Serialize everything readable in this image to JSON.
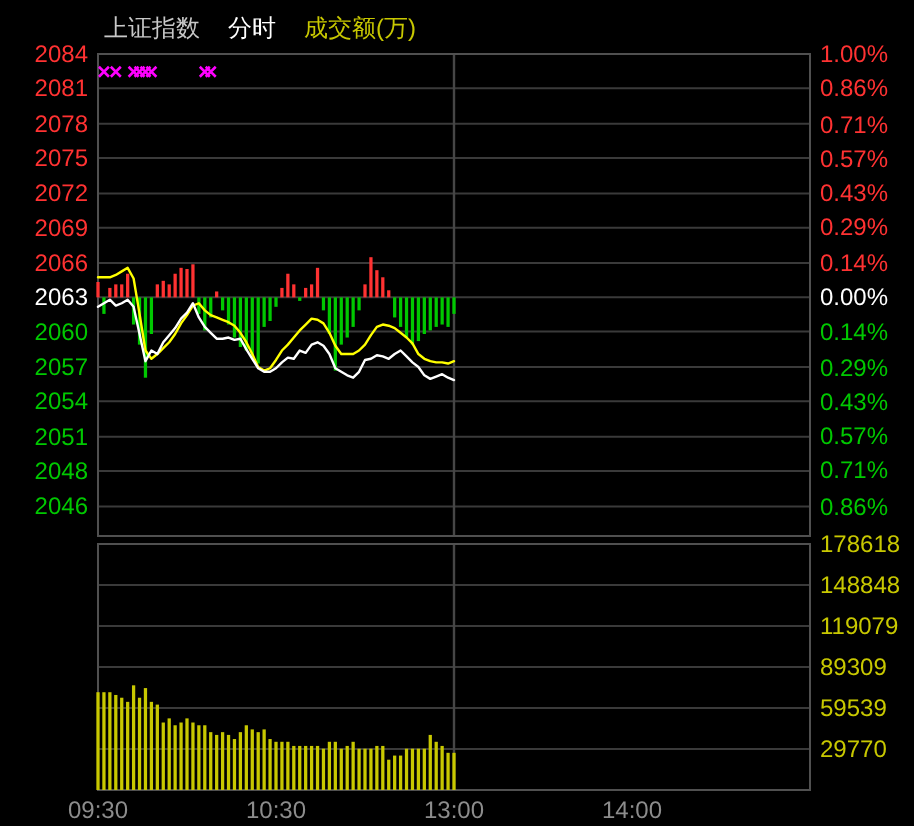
{
  "chart_data": [
    {
      "type": "line",
      "title": "上证指数",
      "subtitle": "分时",
      "annotations": [
        "成交额(万)"
      ],
      "categories": [
        "09:30",
        null,
        null,
        null,
        null,
        null,
        null,
        null,
        null,
        null,
        null,
        null,
        null,
        null,
        null,
        null,
        null,
        null,
        null,
        null,
        null,
        null,
        null,
        null,
        null,
        null,
        null,
        null,
        null,
        null,
        "10:30",
        null,
        null,
        null,
        null,
        null,
        null,
        null,
        null,
        null,
        null,
        null,
        null,
        null,
        null,
        null,
        null,
        null,
        null,
        null,
        null,
        null,
        null,
        null,
        null,
        null,
        null,
        null,
        null,
        null,
        "13:00",
        null,
        null,
        null,
        null,
        null,
        null,
        null,
        null,
        null,
        null,
        null,
        null,
        null,
        null,
        null,
        null,
        null,
        null,
        null,
        null,
        null,
        null,
        null,
        null,
        null,
        null,
        null,
        null,
        null,
        "14:00",
        null,
        null,
        null,
        null,
        null,
        null,
        null,
        null,
        null,
        null,
        null,
        null,
        null,
        null,
        null,
        null,
        null,
        null,
        null,
        null,
        null,
        null,
        null,
        null,
        null,
        null,
        null,
        null,
        null,
        null
      ],
      "ylim": [
        2043.0,
        2083.8
      ],
      "yticks": [
        {
          "value": 2083.8,
          "label": "2084"
        },
        {
          "value": 2080.9,
          "label": "2081"
        },
        {
          "value": 2077.9,
          "label": "2078"
        },
        {
          "value": 2075.0,
          "label": "2075"
        },
        {
          "value": 2072.0,
          "label": "2072"
        },
        {
          "value": 2069.1,
          "label": "2069"
        },
        {
          "value": 2066.1,
          "label": "2066"
        },
        {
          "value": 2063.2,
          "label": "2063"
        },
        {
          "value": 2060.3,
          "label": "2060"
        },
        {
          "value": 2057.3,
          "label": "2057"
        },
        {
          "value": 2054.4,
          "label": "2054"
        },
        {
          "value": 2051.4,
          "label": "2051"
        },
        {
          "value": 2048.5,
          "label": "2048"
        },
        {
          "value": 2045.5,
          "label": "2046"
        }
      ],
      "y2lim": [
        -0.98,
        1.0
      ],
      "y2ticks": [
        {
          "value": 1.0,
          "label": "1.00%"
        },
        {
          "value": 0.86,
          "label": "0.86%"
        },
        {
          "value": 0.71,
          "label": "0.71%"
        },
        {
          "value": 0.57,
          "label": "0.57%"
        },
        {
          "value": 0.43,
          "label": "0.43%"
        },
        {
          "value": 0.29,
          "label": "0.29%"
        },
        {
          "value": 0.14,
          "label": "0.14%"
        },
        {
          "value": 0,
          "label": "0.00%"
        },
        {
          "value": -0.14,
          "label": "0.14%"
        },
        {
          "value": -0.29,
          "label": "0.29%"
        },
        {
          "value": -0.43,
          "label": "0.43%"
        },
        {
          "value": -0.57,
          "label": "0.57%"
        },
        {
          "value": -0.71,
          "label": "0.71%"
        },
        {
          "value": -0.86,
          "label": "0.86%"
        }
      ],
      "tick_labels": "y",
      "grid": "y",
      "ref_lines": [
        {
          "axis": "x",
          "value": "13:00",
          "color": "#464646"
        }
      ],
      "series": [
        {
          "type": "bar",
          "values": [
            1.3,
            -1.4,
            0.8,
            1.1,
            1.1,
            2.0,
            -2.3,
            -4.0,
            -6.8,
            -3.1,
            1.1,
            1.4,
            1.1,
            2.0,
            2.5,
            2.4,
            2.8,
            -1.4,
            -2.8,
            -1.7,
            0.5,
            -1.1,
            -2.3,
            -3.4,
            -4.2,
            -4.5,
            -5.1,
            -5.6,
            -2.5,
            -2.0,
            -0.8,
            0.8,
            2.0,
            1.1,
            -0.3,
            0.8,
            1.1,
            2.5,
            -1.1,
            -3.1,
            -6.2,
            -4.0,
            -3.4,
            -2.5,
            -1.1,
            1.1,
            3.4,
            2.3,
            1.7,
            0.6,
            -1.7,
            -2.5,
            -3.4,
            -4.0,
            -3.7,
            -3.1,
            -2.8,
            -2.5,
            -2.3,
            -2.5,
            -1.4,
            null,
            null,
            null,
            null,
            null,
            null,
            null,
            null,
            null,
            null,
            null,
            null,
            null,
            null,
            null,
            null,
            null,
            null,
            null,
            null,
            null,
            null,
            null,
            null,
            null,
            null,
            null,
            null,
            null,
            null,
            null,
            null,
            null,
            null,
            null,
            null,
            null,
            null,
            null,
            null,
            null,
            null,
            null,
            null,
            null,
            null,
            null,
            null,
            null,
            null,
            null,
            null,
            null,
            null,
            null,
            null,
            null,
            null,
            null,
            null
          ],
          "base": [
            2063.2,
            2063.2,
            2063.2,
            2063.2,
            2063.2,
            2063.2,
            2063.2,
            2063.2,
            2063.2,
            2063.2,
            2063.2,
            2063.2,
            2063.2,
            2063.2,
            2063.2,
            2063.2,
            2063.2,
            2063.2,
            2063.2,
            2063.2,
            2063.2,
            2063.2,
            2063.2,
            2063.2,
            2063.2,
            2063.2,
            2063.2,
            2063.2,
            2063.2,
            2063.2,
            2063.2,
            2063.2,
            2063.2,
            2063.2,
            2063.2,
            2063.2,
            2063.2,
            2063.2,
            2063.2,
            2063.2,
            2063.2,
            2063.2,
            2063.2,
            2063.2,
            2063.2,
            2063.2,
            2063.2,
            2063.2,
            2063.2,
            2063.2,
            2063.2,
            2063.2,
            2063.2,
            2063.2,
            2063.2,
            2063.2,
            2063.2,
            2063.2,
            2063.2,
            2063.2,
            2063.2,
            null,
            null,
            null,
            null,
            null,
            null,
            null,
            null,
            null,
            null,
            null,
            null,
            null,
            null,
            null,
            null,
            null,
            null,
            null,
            null,
            null,
            null,
            null,
            null,
            null,
            null,
            null,
            null,
            null,
            null,
            null,
            null,
            null,
            null,
            null,
            null,
            null,
            null,
            null,
            null,
            null,
            null,
            null,
            null,
            null,
            null,
            null,
            null,
            null,
            null,
            null,
            null,
            null,
            null,
            null,
            null,
            null,
            null,
            null,
            null
          ],
          "colors": [
            "#ff3232",
            "#00c800",
            "#ff3232",
            "#ff3232",
            "#ff3232",
            "#ff3232",
            "#00c800",
            "#00c800",
            "#00c800",
            "#00c800",
            "#ff3232",
            "#ff3232",
            "#ff3232",
            "#ff3232",
            "#ff3232",
            "#ff3232",
            "#ff3232",
            "#00c800",
            "#00c800",
            "#00c800",
            "#ff3232",
            "#00c800",
            "#00c800",
            "#00c800",
            "#00c800",
            "#00c800",
            "#00c800",
            "#00c800",
            "#00c800",
            "#00c800",
            "#00c800",
            "#ff3232",
            "#ff3232",
            "#ff3232",
            "#00c800",
            "#ff3232",
            "#ff3232",
            "#ff3232",
            "#00c800",
            "#00c800",
            "#00c800",
            "#00c800",
            "#00c800",
            "#00c800",
            "#00c800",
            "#ff3232",
            "#ff3232",
            "#ff3232",
            "#ff3232",
            "#ff3232",
            "#00c800",
            "#00c800",
            "#00c800",
            "#00c800",
            "#00c800",
            "#00c800",
            "#00c800",
            "#00c800",
            "#00c800",
            "#00c800",
            "#00c800",
            null,
            null,
            null,
            null,
            null,
            null,
            null,
            null,
            null,
            null,
            null,
            null,
            null,
            null,
            null,
            null,
            null,
            null,
            null,
            null,
            null,
            null,
            null,
            null,
            null,
            null,
            null,
            null,
            null,
            null,
            null,
            null,
            null,
            null,
            null,
            null,
            null,
            null,
            null,
            null,
            null,
            null,
            null,
            null,
            null,
            null,
            null,
            null,
            null,
            null,
            null,
            null,
            null,
            null,
            null,
            null,
            null,
            null,
            null,
            null
          ]
        },
        {
          "color": "#ffff00",
          "values": [
            2064.9,
            2064.9,
            2064.9,
            2065.1,
            2065.4,
            2065.7,
            2064.8,
            2061.8,
            2058.7,
            2058.0,
            2058.4,
            2058.9,
            2059.4,
            2060.1,
            2061.0,
            2061.7,
            2062.5,
            2062.7,
            2062.1,
            2061.7,
            2061.5,
            2061.3,
            2061.1,
            2060.8,
            2060.2,
            2059.4,
            2058.4,
            2057.3,
            2057.0,
            2057.2,
            2057.9,
            2058.7,
            2059.2,
            2059.8,
            2060.4,
            2060.9,
            2061.4,
            2061.3,
            2061.0,
            2060.2,
            2059.1,
            2058.4,
            2058.4,
            2058.4,
            2058.7,
            2059.2,
            2060.0,
            2060.7,
            2060.9,
            2060.8,
            2060.6,
            2060.2,
            2059.8,
            2059.3,
            2058.4,
            2058.0,
            2057.8,
            2057.7,
            2057.7,
            2057.6,
            2057.8,
            null,
            null,
            null,
            null,
            null,
            null,
            null,
            null,
            null,
            null,
            null,
            null,
            null,
            null,
            null,
            null,
            null,
            null,
            null,
            null,
            null,
            null,
            null,
            null,
            null,
            null,
            null,
            null,
            null,
            null,
            null,
            null,
            null,
            null,
            null,
            null,
            null,
            null,
            null,
            null,
            null,
            null,
            null,
            null,
            null,
            null,
            null,
            null,
            null,
            null,
            null,
            null,
            null,
            null,
            null,
            null,
            null,
            null,
            null,
            null
          ]
        },
        {
          "color": "#ffffff",
          "values": [
            2062.4,
            2062.7,
            2063.0,
            2062.5,
            2062.7,
            2063.0,
            2062.4,
            2060.1,
            2057.8,
            2058.7,
            2058.4,
            2059.4,
            2060.0,
            2060.6,
            2061.4,
            2061.9,
            2062.7,
            2061.5,
            2060.7,
            2060.2,
            2059.7,
            2059.7,
            2059.8,
            2059.6,
            2059.7,
            2058.8,
            2058.0,
            2057.2,
            2056.9,
            2056.9,
            2057.2,
            2057.7,
            2058.1,
            2058.0,
            2058.7,
            2058.5,
            2059.2,
            2059.4,
            2059.1,
            2058.4,
            2057.2,
            2056.9,
            2056.6,
            2056.4,
            2056.9,
            2057.9,
            2058.0,
            2058.3,
            2058.2,
            2058.0,
            2058.4,
            2058.7,
            2058.2,
            2057.7,
            2057.3,
            2056.6,
            2056.3,
            2056.5,
            2056.7,
            2056.4,
            2056.2,
            null,
            null,
            null,
            null,
            null,
            null,
            null,
            null,
            null,
            null,
            null,
            null,
            null,
            null,
            null,
            null,
            null,
            null,
            null,
            null,
            null,
            null,
            null,
            null,
            null,
            null,
            null,
            null,
            null,
            null,
            null,
            null,
            null,
            null,
            null,
            null,
            null,
            null,
            null,
            null,
            null,
            null,
            null,
            null,
            null,
            null,
            null,
            null,
            null,
            null,
            null,
            null,
            null,
            null,
            null,
            null,
            null,
            null,
            null,
            null
          ]
        },
        {
          "type": "scatter",
          "marker": "cross",
          "color": "#ff00ff",
          "values": [
            null,
            2082.3,
            null,
            2082.3,
            null,
            null,
            2082.3,
            2082.3,
            2082.3,
            2082.3,
            null,
            null,
            null,
            null,
            null,
            null,
            null,
            null,
            2082.3,
            2082.3,
            null,
            null,
            null,
            null,
            null,
            null,
            null,
            null,
            null,
            null,
            null,
            null,
            null,
            null,
            null,
            null,
            null,
            null,
            null,
            null,
            null,
            null,
            null,
            null,
            null,
            null,
            null,
            null,
            null,
            null,
            null,
            null,
            null,
            null,
            null,
            null,
            null,
            null,
            null,
            null,
            null,
            null,
            null,
            null,
            null,
            null,
            null,
            null,
            null,
            null,
            null,
            null,
            null,
            null,
            null,
            null,
            null,
            null,
            null,
            null,
            null,
            null,
            null,
            null,
            null,
            null,
            null,
            null,
            null,
            null,
            null,
            null,
            null,
            null,
            null,
            null,
            null,
            null,
            null,
            null,
            null,
            null,
            null,
            null,
            null,
            null,
            null,
            null,
            null,
            null,
            null,
            null,
            null,
            null,
            null,
            null,
            null,
            null,
            null,
            null,
            null
          ]
        }
      ]
    },
    {
      "type": "bar",
      "color": "#c8c800",
      "categories": [
        "09:30",
        null,
        null,
        null,
        null,
        null,
        null,
        null,
        null,
        null,
        null,
        null,
        null,
        null,
        null,
        null,
        null,
        null,
        null,
        null,
        null,
        null,
        null,
        null,
        null,
        null,
        null,
        null,
        null,
        null,
        "10:30",
        null,
        null,
        null,
        null,
        null,
        null,
        null,
        null,
        null,
        null,
        null,
        null,
        null,
        null,
        null,
        null,
        null,
        null,
        null,
        null,
        null,
        null,
        null,
        null,
        null,
        null,
        null,
        null,
        null,
        "13:00",
        null,
        null,
        null,
        null,
        null,
        null,
        null,
        null,
        null,
        null,
        null,
        null,
        null,
        null,
        null,
        null,
        null,
        null,
        null,
        null,
        null,
        null,
        null,
        null,
        null,
        null,
        null,
        null,
        null,
        "14:00",
        null,
        null,
        null,
        null,
        null,
        null,
        null,
        null,
        null,
        null,
        null,
        null,
        null,
        null,
        null,
        null,
        null,
        null,
        null,
        null,
        null,
        null,
        null,
        null,
        null,
        null,
        null,
        null,
        null,
        null
      ],
      "values": [
        71000,
        71000,
        71000,
        69000,
        67000,
        64000,
        76000,
        67000,
        74000,
        64000,
        62000,
        49000,
        52000,
        47000,
        49000,
        52000,
        49000,
        47000,
        47000,
        42000,
        40000,
        42000,
        40000,
        37000,
        42000,
        47000,
        44000,
        42000,
        44000,
        37000,
        35000,
        35000,
        35000,
        32000,
        32000,
        32000,
        32000,
        32000,
        30000,
        35000,
        35000,
        30000,
        32000,
        35000,
        30000,
        30000,
        30000,
        32000,
        32000,
        22000,
        25000,
        25000,
        30000,
        30000,
        30000,
        30000,
        40000,
        35000,
        32000,
        27000,
        27000,
        null,
        null,
        null,
        null,
        null,
        null,
        null,
        null,
        null,
        null,
        null,
        null,
        null,
        null,
        null,
        null,
        null,
        null,
        null,
        null,
        null,
        null,
        null,
        null,
        null,
        null,
        null,
        null,
        null,
        null,
        null,
        null,
        null,
        null,
        null,
        null,
        null,
        null,
        null,
        null,
        null,
        null,
        null,
        null,
        null,
        null,
        null,
        null,
        null,
        null,
        null,
        null,
        null,
        null,
        null,
        null,
        null,
        null,
        null,
        null
      ],
      "ylim": [
        0,
        178618
      ],
      "yticks": [
        29770,
        59539,
        89309,
        119079,
        148848,
        178618
      ],
      "grid": "y",
      "ref_lines": [
        {
          "axis": "x",
          "value": "13:00",
          "color": "#464646"
        }
      ]
    }
  ]
}
